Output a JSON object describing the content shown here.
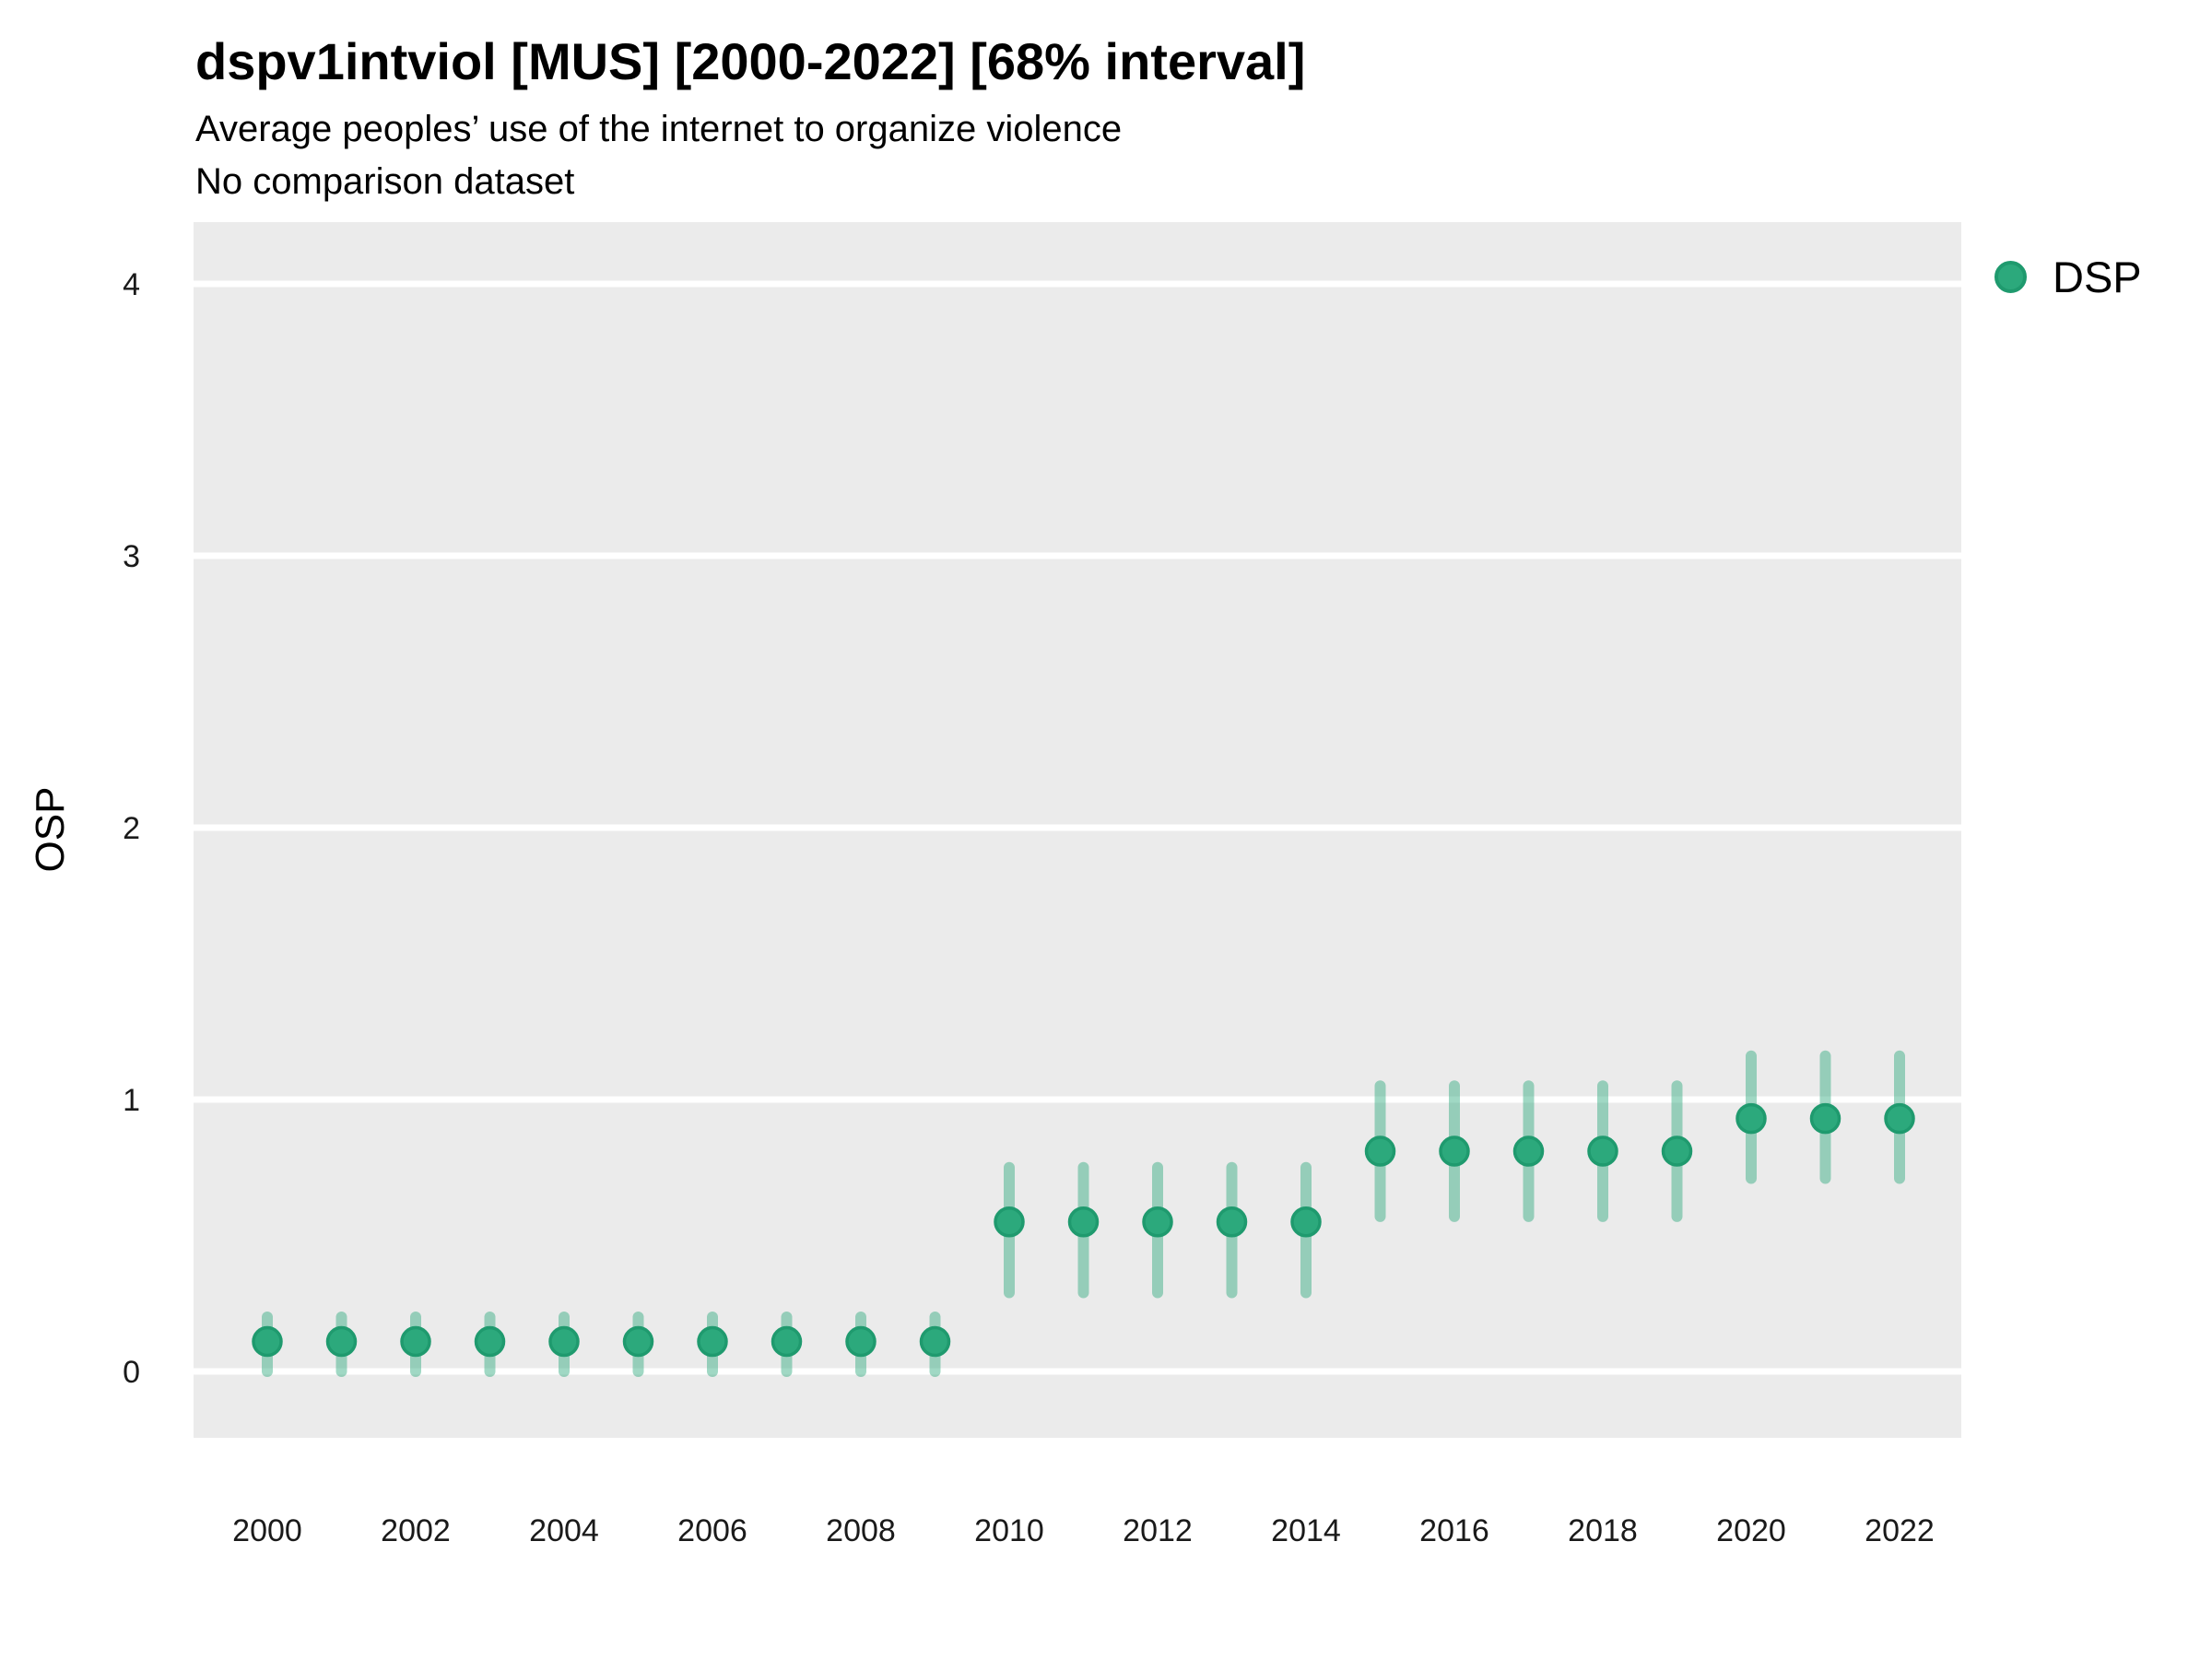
{
  "chart_data": {
    "type": "scatter",
    "style": "pointrange",
    "title": "dspv1intviol [MUS] [2000-2022] [68% interval]",
    "subtitle": "Average peoples’ use of the internet to organize violence",
    "note": "No comparison dataset",
    "xlabel": "",
    "ylabel": "OSP",
    "interval_label": "68% interval",
    "xticks": [
      2000,
      2002,
      2004,
      2006,
      2008,
      2010,
      2012,
      2014,
      2016,
      2018,
      2020,
      2022
    ],
    "yticks": [
      0,
      1,
      2,
      3,
      4
    ],
    "xlim": [
      1999,
      2023
    ],
    "ylim": [
      -0.24,
      4.24
    ],
    "grid": "horizontal white major gridlines on gray panel",
    "legend_position": "right-top",
    "legend": {
      "items": [
        {
          "label": "DSP",
          "marker": "circle",
          "color": "#2CA97C"
        }
      ]
    },
    "series": [
      {
        "name": "DSP",
        "points": [
          {
            "year": 2000,
            "value": 0.11,
            "low": 0.0,
            "high": 0.2
          },
          {
            "year": 2001,
            "value": 0.11,
            "low": 0.0,
            "high": 0.2
          },
          {
            "year": 2002,
            "value": 0.11,
            "low": 0.0,
            "high": 0.2
          },
          {
            "year": 2003,
            "value": 0.11,
            "low": 0.0,
            "high": 0.2
          },
          {
            "year": 2004,
            "value": 0.11,
            "low": 0.0,
            "high": 0.2
          },
          {
            "year": 2005,
            "value": 0.11,
            "low": 0.0,
            "high": 0.2
          },
          {
            "year": 2006,
            "value": 0.11,
            "low": 0.0,
            "high": 0.2
          },
          {
            "year": 2007,
            "value": 0.11,
            "low": 0.0,
            "high": 0.2
          },
          {
            "year": 2008,
            "value": 0.11,
            "low": 0.0,
            "high": 0.2
          },
          {
            "year": 2009,
            "value": 0.11,
            "low": 0.0,
            "high": 0.2
          },
          {
            "year": 2010,
            "value": 0.55,
            "low": 0.29,
            "high": 0.75
          },
          {
            "year": 2011,
            "value": 0.55,
            "low": 0.29,
            "high": 0.75
          },
          {
            "year": 2012,
            "value": 0.55,
            "low": 0.29,
            "high": 0.75
          },
          {
            "year": 2013,
            "value": 0.55,
            "low": 0.29,
            "high": 0.75
          },
          {
            "year": 2014,
            "value": 0.55,
            "low": 0.29,
            "high": 0.75
          },
          {
            "year": 2015,
            "value": 0.81,
            "low": 0.57,
            "high": 1.05
          },
          {
            "year": 2016,
            "value": 0.81,
            "low": 0.57,
            "high": 1.05
          },
          {
            "year": 2017,
            "value": 0.81,
            "low": 0.57,
            "high": 1.05
          },
          {
            "year": 2018,
            "value": 0.81,
            "low": 0.57,
            "high": 1.05
          },
          {
            "year": 2019,
            "value": 0.81,
            "low": 0.57,
            "high": 1.05
          },
          {
            "year": 2020,
            "value": 0.93,
            "low": 0.71,
            "high": 1.16
          },
          {
            "year": 2021,
            "value": 0.93,
            "low": 0.71,
            "high": 1.16
          },
          {
            "year": 2022,
            "value": 0.93,
            "low": 0.71,
            "high": 1.16
          }
        ]
      }
    ]
  },
  "colors": {
    "background": "#FFFFFF",
    "panel_bg": "#EBEBEB",
    "gridline": "#FFFFFF",
    "point_fill": "#2CA97C",
    "point_stroke": "#1F9A6E",
    "interval_bar": "rgba(44,169,124,0.45)",
    "tick_text": "#1A1A1A",
    "title_text": "#000000"
  }
}
